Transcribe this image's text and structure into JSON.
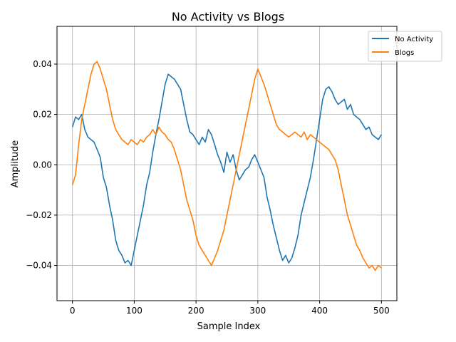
{
  "chart_data": {
    "type": "line",
    "title": "No Activity vs Blogs",
    "xlabel": "Sample Index",
    "ylabel": "Amplitude",
    "xlim": [
      -25,
      525
    ],
    "ylim": [
      -0.054,
      0.055
    ],
    "xticks": [
      0,
      100,
      200,
      300,
      400,
      500
    ],
    "xtick_labels": [
      "0",
      "100",
      "200",
      "300",
      "400",
      "500"
    ],
    "yticks": [
      -0.04,
      -0.02,
      0.0,
      0.02,
      0.04
    ],
    "ytick_labels": [
      "−0.04",
      "−0.02",
      "0.00",
      "0.02",
      "0.04"
    ],
    "grid": true,
    "legend_position": "top-right",
    "series": [
      {
        "name": "No Activity",
        "color": "#1f77b4",
        "x": [
          0,
          5,
          10,
          15,
          20,
          25,
          30,
          35,
          40,
          45,
          50,
          55,
          60,
          65,
          70,
          75,
          80,
          85,
          90,
          95,
          100,
          105,
          110,
          115,
          120,
          125,
          130,
          135,
          140,
          145,
          150,
          155,
          160,
          165,
          170,
          175,
          180,
          185,
          190,
          195,
          200,
          205,
          210,
          215,
          220,
          225,
          230,
          235,
          240,
          245,
          250,
          255,
          260,
          265,
          270,
          275,
          280,
          285,
          290,
          295,
          300,
          305,
          310,
          315,
          320,
          325,
          330,
          335,
          340,
          345,
          350,
          355,
          360,
          365,
          370,
          375,
          380,
          385,
          390,
          395,
          400,
          405,
          410,
          415,
          420,
          425,
          430,
          435,
          440,
          445,
          450,
          455,
          460,
          465,
          470,
          475,
          480,
          485,
          490,
          495,
          500
        ],
        "y": [
          0.015,
          0.019,
          0.018,
          0.02,
          0.014,
          0.011,
          0.01,
          0.009,
          0.006,
          0.003,
          -0.005,
          -0.009,
          -0.016,
          -0.022,
          -0.03,
          -0.034,
          -0.036,
          -0.039,
          -0.038,
          -0.04,
          -0.034,
          -0.028,
          -0.022,
          -0.016,
          -0.008,
          -0.003,
          0.005,
          0.012,
          0.018,
          0.025,
          0.032,
          0.036,
          0.035,
          0.034,
          0.032,
          0.03,
          0.024,
          0.018,
          0.013,
          0.012,
          0.01,
          0.008,
          0.011,
          0.009,
          0.014,
          0.012,
          0.008,
          0.004,
          0.001,
          -0.003,
          0.005,
          0.001,
          0.004,
          -0.002,
          -0.006,
          -0.004,
          -0.002,
          -0.001,
          0.002,
          0.004,
          0.001,
          -0.002,
          -0.005,
          -0.013,
          -0.018,
          -0.024,
          -0.029,
          -0.034,
          -0.038,
          -0.036,
          -0.039,
          -0.037,
          -0.033,
          -0.028,
          -0.02,
          -0.015,
          -0.01,
          -0.005,
          0.002,
          0.01,
          0.018,
          0.026,
          0.03,
          0.031,
          0.029,
          0.026,
          0.024,
          0.025,
          0.026,
          0.022,
          0.024,
          0.02,
          0.019,
          0.018,
          0.016,
          0.014,
          0.015,
          0.012,
          0.011,
          0.01,
          0.012
        ]
      },
      {
        "name": "Blogs",
        "color": "#ff7f0e",
        "x": [
          0,
          5,
          10,
          15,
          20,
          25,
          30,
          35,
          40,
          45,
          50,
          55,
          60,
          65,
          70,
          75,
          80,
          85,
          90,
          95,
          100,
          105,
          110,
          115,
          120,
          125,
          130,
          135,
          140,
          145,
          150,
          155,
          160,
          165,
          170,
          175,
          180,
          185,
          190,
          195,
          200,
          205,
          210,
          215,
          220,
          225,
          230,
          235,
          240,
          245,
          250,
          255,
          260,
          265,
          270,
          275,
          280,
          285,
          290,
          295,
          300,
          305,
          310,
          315,
          320,
          325,
          330,
          335,
          340,
          345,
          350,
          355,
          360,
          365,
          370,
          375,
          380,
          385,
          390,
          395,
          400,
          405,
          410,
          415,
          420,
          425,
          430,
          435,
          440,
          445,
          450,
          455,
          460,
          465,
          470,
          475,
          480,
          485,
          490,
          495,
          500
        ],
        "y": [
          -0.008,
          -0.004,
          0.008,
          0.018,
          0.024,
          0.03,
          0.036,
          0.04,
          0.041,
          0.038,
          0.034,
          0.03,
          0.024,
          0.018,
          0.014,
          0.012,
          0.01,
          0.009,
          0.008,
          0.01,
          0.009,
          0.008,
          0.01,
          0.009,
          0.011,
          0.012,
          0.014,
          0.012,
          0.015,
          0.013,
          0.012,
          0.01,
          0.009,
          0.006,
          0.002,
          -0.002,
          -0.008,
          -0.014,
          -0.018,
          -0.022,
          -0.028,
          -0.032,
          -0.034,
          -0.036,
          -0.038,
          -0.04,
          -0.037,
          -0.034,
          -0.03,
          -0.026,
          -0.02,
          -0.014,
          -0.008,
          -0.002,
          0.004,
          0.01,
          0.016,
          0.022,
          0.028,
          0.034,
          0.038,
          0.035,
          0.032,
          0.028,
          0.024,
          0.02,
          0.016,
          0.014,
          0.013,
          0.012,
          0.011,
          0.012,
          0.013,
          0.012,
          0.011,
          0.013,
          0.01,
          0.012,
          0.011,
          0.01,
          0.009,
          0.008,
          0.007,
          0.006,
          0.004,
          0.002,
          -0.002,
          -0.008,
          -0.014,
          -0.02,
          -0.024,
          -0.028,
          -0.032,
          -0.034,
          -0.037,
          -0.039,
          -0.041,
          -0.04,
          -0.042,
          -0.04,
          -0.041
        ]
      }
    ]
  }
}
